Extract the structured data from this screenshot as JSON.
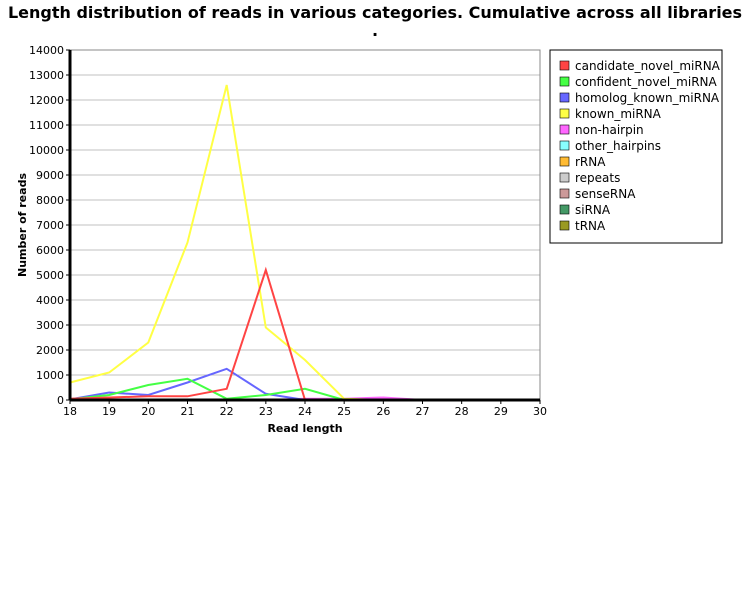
{
  "chart_data": {
    "type": "line",
    "title": "Length distribution of reads in various categories. Cumulative across all libraries",
    "subtitle": ".",
    "xlabel": "Read length",
    "ylabel": "Number of reads",
    "x": [
      18,
      19,
      20,
      21,
      22,
      23,
      24,
      25,
      26,
      27,
      28,
      29,
      30
    ],
    "xlim": [
      18,
      30
    ],
    "ylim": [
      0,
      14000
    ],
    "yticks": [
      0,
      1000,
      2000,
      3000,
      4000,
      5000,
      6000,
      7000,
      8000,
      9000,
      10000,
      11000,
      12000,
      13000,
      14000
    ],
    "grid": true,
    "legend_position": "right",
    "series": [
      {
        "name": "candidate_novel_miRNA",
        "color": "#ff4444",
        "values": [
          50,
          100,
          150,
          150,
          450,
          5200,
          0,
          0,
          0,
          0,
          0,
          0,
          0
        ]
      },
      {
        "name": "confident_novel_miRNA",
        "color": "#44ff44",
        "values": [
          30,
          200,
          600,
          850,
          50,
          200,
          450,
          0,
          0,
          0,
          0,
          0,
          0
        ]
      },
      {
        "name": "homolog_known_miRNA",
        "color": "#6666ff",
        "values": [
          30,
          300,
          200,
          700,
          1250,
          250,
          0,
          0,
          0,
          0,
          0,
          0,
          0
        ]
      },
      {
        "name": "known_miRNA",
        "color": "#ffff44",
        "values": [
          700,
          1100,
          2300,
          6300,
          12600,
          2900,
          1600,
          50,
          0,
          0,
          0,
          0,
          0
        ]
      },
      {
        "name": "non-hairpin",
        "color": "#ff66ff",
        "values": [
          0,
          0,
          0,
          0,
          0,
          0,
          50,
          50,
          100,
          0,
          0,
          0,
          0
        ]
      },
      {
        "name": "other_hairpins",
        "color": "#88ffff",
        "values": [
          0,
          0,
          0,
          0,
          0,
          0,
          0,
          0,
          0,
          0,
          0,
          0,
          0
        ]
      },
      {
        "name": "rRNA",
        "color": "#ffbb33",
        "values": [
          0,
          0,
          0,
          0,
          0,
          0,
          0,
          0,
          0,
          0,
          0,
          0,
          0
        ]
      },
      {
        "name": "repeats",
        "color": "#cccccc",
        "values": [
          0,
          0,
          0,
          0,
          0,
          0,
          0,
          0,
          0,
          0,
          0,
          0,
          0
        ]
      },
      {
        "name": "senseRNA",
        "color": "#cc9999",
        "values": [
          0,
          0,
          0,
          0,
          0,
          0,
          0,
          0,
          0,
          0,
          0,
          0,
          0
        ]
      },
      {
        "name": "siRNA",
        "color": "#449966",
        "values": [
          0,
          0,
          0,
          0,
          0,
          0,
          0,
          0,
          0,
          0,
          0,
          0,
          0
        ]
      },
      {
        "name": "tRNA",
        "color": "#999922",
        "values": [
          0,
          0,
          0,
          0,
          0,
          0,
          0,
          0,
          0,
          0,
          0,
          0,
          0
        ]
      }
    ]
  }
}
